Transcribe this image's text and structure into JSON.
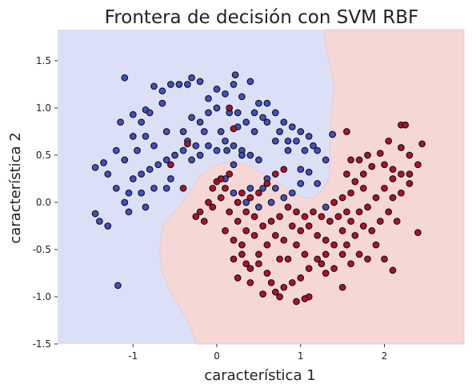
{
  "chart_data": {
    "type": "scatter",
    "title": "Frontera de decisión con SVM RBF",
    "xlabel": "característica 1",
    "ylabel": "característica 2",
    "xlim": [
      -1.9,
      2.95
    ],
    "ylim": [
      -1.5,
      1.83
    ],
    "xticks": [
      -1,
      0,
      1,
      2
    ],
    "xtick_labels": [
      "-1",
      "0",
      "1",
      "2"
    ],
    "yticks": [
      -1.5,
      -1.0,
      -0.5,
      0.0,
      0.5,
      1.0,
      1.5
    ],
    "ytick_labels": [
      "-1.5",
      "-1.0",
      "-0.5",
      "0.0",
      "0.5",
      "1.0",
      "1.5"
    ],
    "grid": false,
    "colors": {
      "region_blue": "#dbe0f6",
      "region_red": "#f5d8d5",
      "class_blue": "#4050c4",
      "class_red": "#b0102e",
      "edge": "#111111"
    },
    "decision_boundary": [
      [
        1.28,
        1.83
      ],
      [
        1.3,
        1.65
      ],
      [
        1.34,
        1.5
      ],
      [
        1.38,
        1.35
      ],
      [
        1.4,
        1.2
      ],
      [
        1.38,
        1.05
      ],
      [
        1.37,
        0.9
      ],
      [
        1.35,
        0.75
      ],
      [
        1.35,
        0.6
      ],
      [
        1.36,
        0.45
      ],
      [
        1.35,
        0.32
      ],
      [
        1.32,
        0.22
      ],
      [
        1.25,
        0.12
      ],
      [
        1.15,
        0.05
      ],
      [
        1.05,
        0.05
      ],
      [
        0.95,
        0.08
      ],
      [
        0.82,
        0.15
      ],
      [
        0.7,
        0.22
      ],
      [
        0.55,
        0.3
      ],
      [
        0.4,
        0.38
      ],
      [
        0.25,
        0.42
      ],
      [
        0.1,
        0.42
      ],
      [
        -0.05,
        0.38
      ],
      [
        -0.2,
        0.28
      ],
      [
        -0.3,
        0.15
      ],
      [
        -0.45,
        -0.05
      ],
      [
        -0.65,
        -0.25
      ],
      [
        -0.68,
        -0.55
      ],
      [
        -0.65,
        -0.75
      ],
      [
        -0.55,
        -0.95
      ],
      [
        -0.45,
        -1.1
      ],
      [
        -0.35,
        -1.25
      ],
      [
        -0.28,
        -1.4
      ],
      [
        -0.25,
        -1.5
      ]
    ],
    "series": [
      {
        "values": [
          [
            -1.1,
            1.32
          ],
          [
            -1.45,
            0.37
          ],
          [
            -1.35,
            0.42
          ],
          [
            -1.2,
            0.55
          ],
          [
            -1.15,
            0.85
          ],
          [
            -1.0,
            0.93
          ],
          [
            -0.85,
            0.98
          ],
          [
            -0.75,
            1.23
          ],
          [
            -0.65,
            1.18
          ],
          [
            -0.55,
            1.25
          ],
          [
            -0.45,
            1.25
          ],
          [
            -0.35,
            1.25
          ],
          [
            -0.3,
            1.32
          ],
          [
            -0.2,
            1.28
          ],
          [
            -0.1,
            1.1
          ],
          [
            0.0,
            1.2
          ],
          [
            0.1,
            1.15
          ],
          [
            0.2,
            1.25
          ],
          [
            0.22,
            1.35
          ],
          [
            0.3,
            1.12
          ],
          [
            0.4,
            1.28
          ],
          [
            0.5,
            1.05
          ],
          [
            0.55,
            0.9
          ],
          [
            0.6,
            1.05
          ],
          [
            0.7,
            0.95
          ],
          [
            0.8,
            0.85
          ],
          [
            0.9,
            0.8
          ],
          [
            1.0,
            0.75
          ],
          [
            1.1,
            0.7
          ],
          [
            1.15,
            0.6
          ],
          [
            1.2,
            0.55
          ],
          [
            1.3,
            0.45
          ],
          [
            1.38,
            0.72
          ],
          [
            1.1,
            0.32
          ],
          [
            1.0,
            0.2
          ],
          [
            0.9,
            0.1
          ],
          [
            0.8,
            0.05
          ],
          [
            0.7,
            0.15
          ],
          [
            0.6,
            0.25
          ],
          [
            0.5,
            0.45
          ],
          [
            0.4,
            0.5
          ],
          [
            0.3,
            0.55
          ],
          [
            0.2,
            0.6
          ],
          [
            0.1,
            0.65
          ],
          [
            0.0,
            0.55
          ],
          [
            -0.1,
            0.6
          ],
          [
            -0.2,
            0.5
          ],
          [
            -0.3,
            0.45
          ],
          [
            -0.4,
            0.55
          ],
          [
            -0.5,
            0.5
          ],
          [
            -0.6,
            0.45
          ],
          [
            -0.7,
            0.4
          ],
          [
            -0.8,
            0.35
          ],
          [
            -0.9,
            0.3
          ],
          [
            -1.0,
            0.25
          ],
          [
            -1.05,
            0.1
          ],
          [
            -1.1,
            0.0
          ],
          [
            -1.05,
            -0.1
          ],
          [
            -0.9,
            0.1
          ],
          [
            -0.85,
            -0.05
          ],
          [
            -0.75,
            0.15
          ],
          [
            -0.6,
            0.15
          ],
          [
            -0.55,
            0.25
          ],
          [
            -1.3,
            -0.25
          ],
          [
            -1.4,
            -0.2
          ],
          [
            -1.45,
            -0.12
          ],
          [
            -1.2,
            0.15
          ],
          [
            -0.95,
            0.55
          ],
          [
            -1.0,
            0.7
          ],
          [
            -0.9,
            0.85
          ],
          [
            -0.8,
            0.95
          ],
          [
            -0.6,
            0.75
          ],
          [
            -0.4,
            0.75
          ],
          [
            -0.3,
            0.9
          ],
          [
            -0.2,
            0.85
          ],
          [
            -0.1,
            0.95
          ],
          [
            0.0,
            1.0
          ],
          [
            0.15,
            0.95
          ],
          [
            0.25,
            0.8
          ],
          [
            0.35,
            0.85
          ],
          [
            0.45,
            0.95
          ],
          [
            0.6,
            0.85
          ],
          [
            0.75,
            0.75
          ],
          [
            0.85,
            0.65
          ],
          [
            0.95,
            0.65
          ],
          [
            1.05,
            0.55
          ],
          [
            0.3,
            0.5
          ],
          [
            0.2,
            0.4
          ],
          [
            0.1,
            0.25
          ],
          [
            0.2,
            0.1
          ],
          [
            0.35,
            0.0
          ],
          [
            0.5,
            -0.05
          ],
          [
            0.65,
            0.0
          ],
          [
            0.4,
            0.15
          ],
          [
            0.55,
            0.15
          ],
          [
            -1.1,
            0.45
          ],
          [
            -1.3,
            0.3
          ],
          [
            -0.65,
            1.05
          ],
          [
            -0.75,
            0.6
          ],
          [
            -0.85,
            0.7
          ],
          [
            -0.35,
            0.65
          ],
          [
            -0.15,
            0.75
          ],
          [
            0.05,
            0.75
          ],
          [
            0.25,
            0.95
          ],
          [
            0.45,
            0.75
          ],
          [
            0.7,
            0.65
          ],
          [
            0.85,
            0.55
          ],
          [
            1.0,
            0.35
          ],
          [
            1.2,
            0.2
          ],
          [
            1.3,
            -0.05
          ],
          [
            -1.18,
            -0.88
          ],
          [
            -0.25,
            0.6
          ],
          [
            0.12,
            0.55
          ]
        ]
      },
      {
        "values": [
          [
            0.2,
            0.78
          ],
          [
            0.0,
            0.22
          ],
          [
            0.05,
            0.05
          ],
          [
            -0.05,
            -0.05
          ],
          [
            -0.15,
            -0.2
          ],
          [
            -0.25,
            -0.15
          ],
          [
            0.15,
            -0.1
          ],
          [
            0.25,
            -0.2
          ],
          [
            0.35,
            -0.3
          ],
          [
            0.45,
            -0.35
          ],
          [
            0.3,
            -0.45
          ],
          [
            0.2,
            -0.6
          ],
          [
            0.35,
            -0.65
          ],
          [
            0.5,
            -0.55
          ],
          [
            0.6,
            -0.45
          ],
          [
            0.7,
            -0.35
          ],
          [
            0.8,
            -0.4
          ],
          [
            0.9,
            -0.25
          ],
          [
            1.0,
            -0.3
          ],
          [
            1.1,
            -0.25
          ],
          [
            1.2,
            -0.35
          ],
          [
            1.3,
            -0.4
          ],
          [
            1.4,
            -0.45
          ],
          [
            1.5,
            -0.3
          ],
          [
            1.6,
            -0.2
          ],
          [
            1.7,
            -0.1
          ],
          [
            1.8,
            -0.05
          ],
          [
            1.9,
            0.05
          ],
          [
            2.0,
            0.15
          ],
          [
            2.1,
            0.25
          ],
          [
            2.2,
            0.3
          ],
          [
            2.3,
            0.3
          ],
          [
            1.9,
            -0.45
          ],
          [
            1.8,
            -0.6
          ],
          [
            1.7,
            -0.55
          ],
          [
            1.6,
            -0.65
          ],
          [
            1.5,
            -0.55
          ],
          [
            1.4,
            -0.7
          ],
          [
            1.3,
            -0.75
          ],
          [
            1.2,
            -0.6
          ],
          [
            1.1,
            -0.7
          ],
          [
            1.0,
            -0.8
          ],
          [
            0.9,
            -0.85
          ],
          [
            0.85,
            -0.6
          ],
          [
            0.8,
            -0.9
          ],
          [
            0.75,
            -1.0
          ],
          [
            0.7,
            -0.95
          ],
          [
            0.65,
            -0.85
          ],
          [
            0.6,
            -0.75
          ],
          [
            0.5,
            -0.65
          ],
          [
            0.4,
            -0.7
          ],
          [
            0.3,
            -0.55
          ],
          [
            0.2,
            -0.4
          ],
          [
            0.1,
            -0.3
          ],
          [
            1.5,
            -0.9
          ],
          [
            1.1,
            -1.0
          ],
          [
            1.05,
            -1.02
          ],
          [
            0.95,
            -1.05
          ],
          [
            0.55,
            -0.97
          ],
          [
            2.0,
            -0.6
          ],
          [
            2.1,
            -0.72
          ],
          [
            2.4,
            -0.32
          ],
          [
            2.2,
            0.58
          ],
          [
            2.1,
            0.35
          ],
          [
            2.2,
            0.82
          ],
          [
            2.25,
            0.82
          ],
          [
            2.05,
            0.65
          ],
          [
            1.95,
            0.52
          ],
          [
            2.0,
            0.4
          ],
          [
            1.85,
            0.38
          ],
          [
            1.75,
            0.3
          ],
          [
            1.65,
            0.22
          ],
          [
            1.55,
            0.3
          ],
          [
            1.6,
            0.1
          ],
          [
            1.5,
            0.05
          ],
          [
            1.4,
            0.0
          ],
          [
            1.55,
            -0.1
          ],
          [
            1.45,
            -0.15
          ],
          [
            1.35,
            -0.2
          ],
          [
            1.25,
            -0.15
          ],
          [
            1.15,
            -0.1
          ],
          [
            1.05,
            -0.15
          ],
          [
            0.95,
            -0.1
          ],
          [
            0.85,
            -0.05
          ],
          [
            0.75,
            -0.15
          ],
          [
            0.65,
            -0.2
          ],
          [
            0.55,
            -0.25
          ],
          [
            0.45,
            -0.15
          ],
          [
            0.35,
            -0.1
          ],
          [
            0.25,
            0.0
          ],
          [
            0.1,
            0.15
          ],
          [
            0.15,
            0.3
          ],
          [
            0.05,
            0.25
          ],
          [
            -0.05,
            0.15
          ],
          [
            -0.1,
            0.0
          ],
          [
            -0.2,
            -0.1
          ],
          [
            0.3,
            0.1
          ],
          [
            0.4,
            0.05
          ],
          [
            0.5,
            0.1
          ],
          [
            0.6,
            0.2
          ],
          [
            0.7,
            0.3
          ],
          [
            0.8,
            0.35
          ],
          [
            2.15,
            -0.2
          ],
          [
            2.05,
            -0.1
          ],
          [
            1.95,
            -0.2
          ],
          [
            1.85,
            -0.3
          ],
          [
            1.75,
            -0.25
          ],
          [
            1.65,
            -0.35
          ],
          [
            1.55,
            -0.45
          ],
          [
            1.3,
            -0.55
          ],
          [
            1.25,
            -0.65
          ],
          [
            2.3,
            0.5
          ],
          [
            2.45,
            0.62
          ],
          [
            2.4,
            0.4
          ],
          [
            1.8,
            0.5
          ],
          [
            1.7,
            0.45
          ],
          [
            2.2,
            0.1
          ],
          [
            2.1,
            0.05
          ],
          [
            2.3,
            0.2
          ],
          [
            -0.4,
            0.15
          ],
          [
            -0.55,
            0.4
          ],
          [
            -0.35,
            0.62
          ],
          [
            0.15,
            1.0
          ],
          [
            1.55,
            0.75
          ],
          [
            1.6,
            0.45
          ],
          [
            1.75,
            0.15
          ],
          [
            0.95,
            -0.45
          ],
          [
            0.75,
            -0.6
          ],
          [
            1.05,
            -0.55
          ],
          [
            0.25,
            -0.8
          ],
          [
            0.4,
            -0.85
          ]
        ]
      }
    ]
  }
}
